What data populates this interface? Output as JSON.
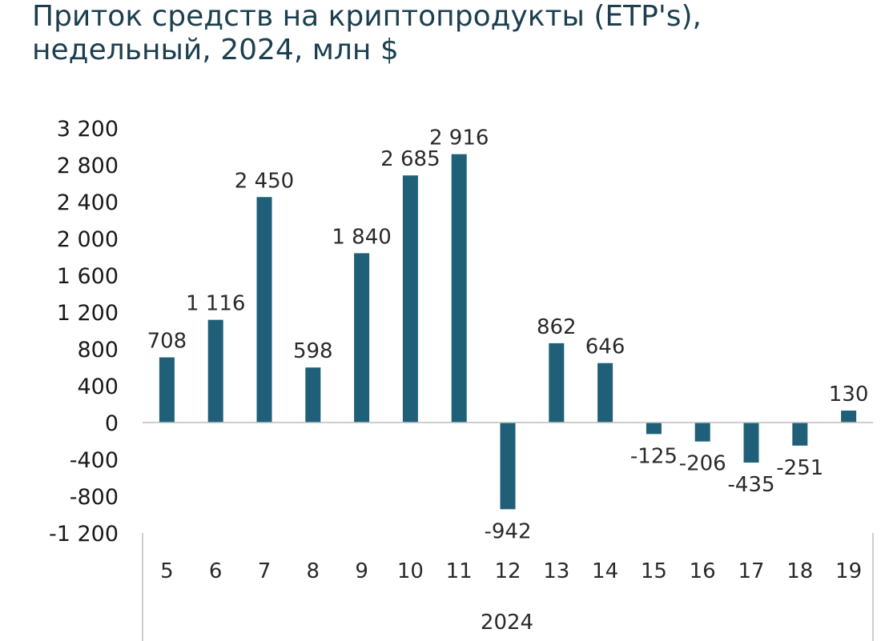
{
  "title_lines": [
    "Приток средств на криптопродукты (ETP's),",
    "недельный, 2024, млн $"
  ],
  "chart_data": {
    "type": "bar",
    "title": "Приток средств на криптопродукты (ETP's), недельный, 2024, млн $",
    "categories": [
      "5",
      "6",
      "7",
      "8",
      "9",
      "10",
      "11",
      "12",
      "13",
      "14",
      "15",
      "16",
      "17",
      "18",
      "19"
    ],
    "values": [
      708,
      1116,
      2450,
      598,
      1840,
      2685,
      2916,
      -942,
      862,
      646,
      -125,
      -206,
      -435,
      -251,
      130
    ],
    "data_labels": [
      "708",
      "1 116",
      "2 450",
      "598",
      "1 840",
      "2 685",
      "2 916",
      "-942",
      "862",
      "646",
      "-125",
      "-206",
      "-435",
      "-251",
      "130"
    ],
    "group_label": "2024",
    "ylim": [
      -1200,
      3200
    ],
    "yticks": [
      3200,
      2800,
      2400,
      2000,
      1600,
      1200,
      800,
      400,
      0,
      -400,
      -800,
      -1200
    ],
    "ytick_labels": [
      "3 200",
      "2 800",
      "2 400",
      "2 000",
      "1 600",
      "1 200",
      "800",
      "400",
      "0",
      "-400",
      "-800",
      "-1 200"
    ],
    "bar_color": "#1f5f78",
    "grid": false,
    "legend": "none"
  }
}
